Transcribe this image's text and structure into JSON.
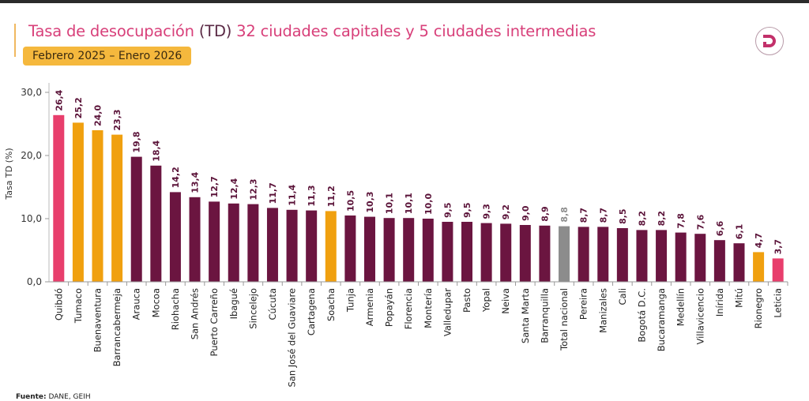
{
  "header": {
    "title_part1": "Tasa de desocupación ",
    "title_part2": "(TD)",
    "title_part3": " 32 ciudades capitales y 5 ciudades intermedias",
    "period_badge": "Febrero 2025 – Enero 2026",
    "logo_letter": "D"
  },
  "footer": {
    "source_label": "Fuente:",
    "source_value": " DANE, GEIH"
  },
  "colors": {
    "capital": "#6b1540",
    "intermediate": "#f0a00f",
    "highlight": "#e83e6c",
    "national": "#8c8c8c"
  },
  "chart_data": {
    "type": "bar",
    "title": "Tasa de desocupación (TD) 32 ciudades capitales y 5 ciudades intermedias",
    "subtitle": "Febrero 2025 – Enero 2026",
    "xlabel": "",
    "ylabel": "Tasa TD (%)",
    "ylim": [
      0,
      30
    ],
    "yticks": [
      "0,0",
      "10,0",
      "20,0",
      "30,0"
    ],
    "ytick_values": [
      0,
      10,
      20,
      30
    ],
    "grid": false,
    "categories": [
      "Quibdó",
      "Tumaco",
      "Buenaventura",
      "Barrancabermeja",
      "Arauca",
      "Mocoa",
      "Riohacha",
      "San Andrés",
      "Puerto Carreño",
      "Ibagué",
      "Sincelejo",
      "Cúcuta",
      "San José del Guaviare",
      "Cartagena",
      "Soacha",
      "Tunja",
      "Armenia",
      "Popayán",
      "Florencia",
      "Montería",
      "Valledupar",
      "Pasto",
      "Yopal",
      "Neiva",
      "Santa Marta",
      "Barranquilla",
      "Total nacional",
      "Pereira",
      "Manizales",
      "Cali",
      "Bogotá D.C.",
      "Bucaramanga",
      "Medellín",
      "Villavicencio",
      "Inírida",
      "Mitú",
      "Rionegro",
      "Leticia"
    ],
    "values": [
      26.4,
      25.2,
      24.0,
      23.3,
      19.8,
      18.4,
      14.2,
      13.4,
      12.7,
      12.4,
      12.3,
      11.7,
      11.4,
      11.3,
      11.2,
      10.5,
      10.3,
      10.1,
      10.1,
      10.0,
      9.5,
      9.5,
      9.3,
      9.2,
      9.0,
      8.9,
      8.8,
      8.7,
      8.7,
      8.5,
      8.2,
      8.2,
      7.8,
      7.6,
      6.6,
      6.1,
      4.7,
      3.7
    ],
    "labels": [
      "26,4",
      "25,2",
      "24,0",
      "23,3",
      "19,8",
      "18,4",
      "14,2",
      "13,4",
      "12,7",
      "12,4",
      "12,3",
      "11,7",
      "11,4",
      "11,3",
      "11,2",
      "10,5",
      "10,3",
      "10,1",
      "10,1",
      "10,0",
      "9,5",
      "9,5",
      "9,3",
      "9,2",
      "9,0",
      "8,9",
      "8,8",
      "8,7",
      "8,7",
      "8,5",
      "8,2",
      "8,2",
      "7,8",
      "7,6",
      "6,6",
      "6,1",
      "4,7",
      "3,7"
    ],
    "groups": [
      "highlight",
      "intermediate",
      "intermediate",
      "intermediate",
      "capital",
      "capital",
      "capital",
      "capital",
      "capital",
      "capital",
      "capital",
      "capital",
      "capital",
      "capital",
      "intermediate",
      "capital",
      "capital",
      "capital",
      "capital",
      "capital",
      "capital",
      "capital",
      "capital",
      "capital",
      "capital",
      "capital",
      "national",
      "capital",
      "capital",
      "capital",
      "capital",
      "capital",
      "capital",
      "capital",
      "capital",
      "capital",
      "intermediate",
      "highlight"
    ]
  }
}
